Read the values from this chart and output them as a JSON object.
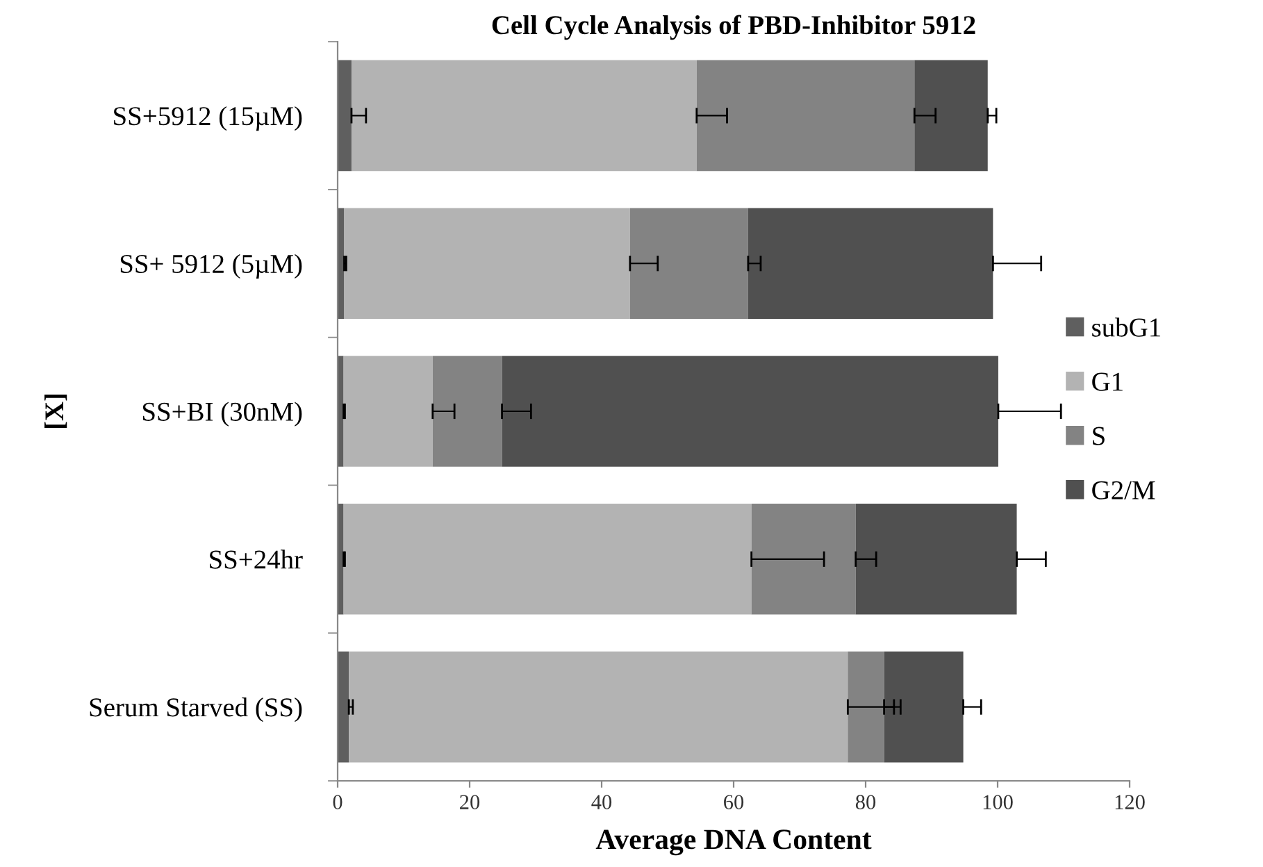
{
  "chart_data": {
    "type": "bar",
    "orientation": "horizontal",
    "stacked": true,
    "title": "Cell Cycle Analysis of PBD-Inhibitor 5912",
    "xlabel": "Average DNA Content",
    "ylabel": "[X]",
    "categories": [
      "SS+5912 (15µM)",
      "SS+ 5912 (5µM)",
      "SS+BI (30nM)",
      "SS+24hr",
      "Serum Starved (SS)"
    ],
    "series": [
      {
        "name": "subG1",
        "color": "#5f5f5f",
        "values": [
          2.1,
          1.0,
          0.9,
          0.9,
          1.7
        ],
        "errors": [
          [
            2.1,
            4.3
          ],
          [
            1.0,
            1.3
          ],
          [
            0.9,
            1.1
          ],
          [
            0.9,
            1.1
          ],
          [
            1.7,
            2.3
          ]
        ]
      },
      {
        "name": "G1",
        "color": "#b3b3b3",
        "values": [
          52.3,
          43.3,
          13.5,
          61.8,
          75.6
        ],
        "errors": [
          [
            54.4,
            59.0
          ],
          [
            44.3,
            48.5
          ],
          [
            14.4,
            17.7
          ],
          [
            62.7,
            73.7
          ],
          [
            77.3,
            84.3
          ]
        ]
      },
      {
        "name": "S",
        "color": "#838383",
        "values": [
          33.0,
          17.9,
          10.5,
          15.8,
          5.5
        ],
        "errors": [
          [
            87.4,
            90.6
          ],
          [
            62.2,
            64.1
          ],
          [
            24.9,
            29.3
          ],
          [
            78.5,
            81.6
          ],
          [
            82.8,
            85.3
          ]
        ]
      },
      {
        "name": "G2/M",
        "color": "#505050",
        "values": [
          11.1,
          37.1,
          75.2,
          24.4,
          12.0
        ],
        "errors": [
          [
            98.5,
            99.8
          ],
          [
            99.3,
            106.6
          ],
          [
            100.1,
            109.6
          ],
          [
            102.9,
            107.3
          ],
          [
            94.8,
            97.5
          ]
        ]
      }
    ],
    "xlim": [
      0,
      120
    ],
    "xticks": [
      0,
      20,
      40,
      60,
      80,
      100,
      120
    ],
    "grid": false,
    "legend": "right"
  }
}
